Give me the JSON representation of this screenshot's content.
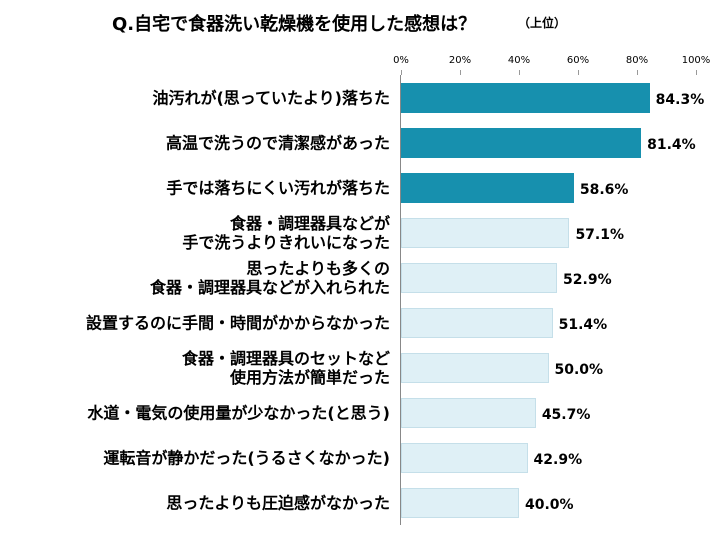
{
  "chart_data": {
    "type": "bar",
    "orientation": "horizontal",
    "title": "Q.自宅で食器洗い乾燥機を使用した感想は？",
    "subtitle": "（上位）",
    "categories": [
      "油汚れが(思っていたより)落ちた",
      "高温で洗うので清潔感があった",
      "手では落ちにくい汚れが落ちた",
      "食器・調理器具などが\n手で洗うよりきれいになった",
      "思ったよりも多くの\n食器・調理器具などが入れられた",
      "設置するのに手間・時間がかからなかった",
      "食器・調理器具のセットなど\n使用方法が簡単だった",
      "水道・電気の使用量が少なかった(と思う)",
      "運転音が静かだった(うるさくなかった)",
      "思ったよりも圧迫感がなかった"
    ],
    "values": [
      84.3,
      81.4,
      58.6,
      57.1,
      52.9,
      51.4,
      50.0,
      45.7,
      42.9,
      40.0
    ],
    "value_labels": [
      "84.3%",
      "81.4%",
      "58.6%",
      "57.1%",
      "52.9%",
      "51.4%",
      "50.0%",
      "45.7%",
      "42.9%",
      "40.0%"
    ],
    "colors": [
      "#1790ae",
      "#1790ae",
      "#1790ae",
      "#dff0f6",
      "#dff0f6",
      "#dff0f6",
      "#dff0f6",
      "#dff0f6",
      "#dff0f6",
      "#dff0f6"
    ],
    "xlim": [
      0,
      100
    ],
    "xticks": [
      {
        "value": 0,
        "label": "0%"
      },
      {
        "value": 20,
        "label": "20%"
      },
      {
        "value": 40,
        "label": "40%"
      },
      {
        "value": 60,
        "label": "60%"
      },
      {
        "value": 80,
        "label": "80%"
      },
      {
        "value": 100,
        "label": "100%"
      }
    ]
  }
}
